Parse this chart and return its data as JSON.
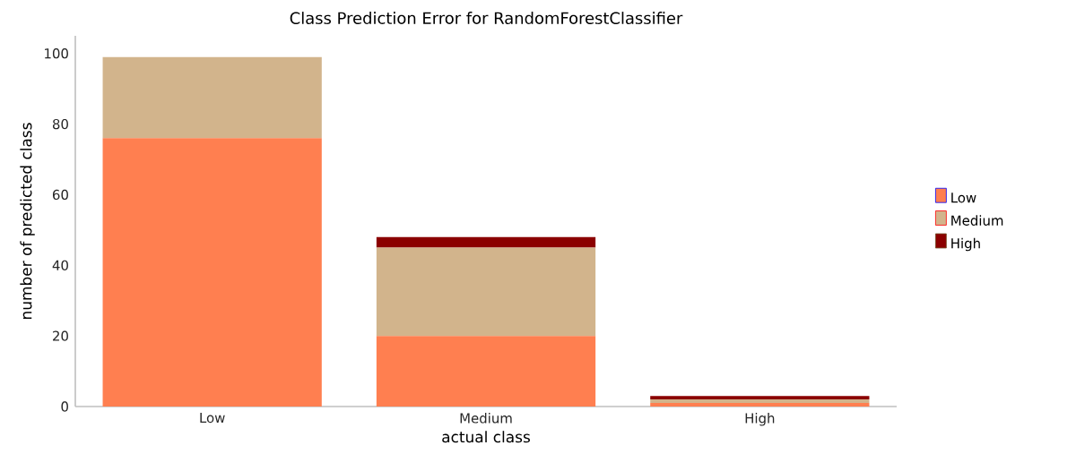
{
  "chart_data": {
    "type": "bar",
    "stacked": true,
    "title": "Class Prediction Error for RandomForestClassifier",
    "xlabel": "actual class",
    "ylabel": "number of predicted class",
    "categories": [
      "Low",
      "Medium",
      "High"
    ],
    "series": [
      {
        "name": "Low",
        "color": "#ff7f50",
        "values": [
          76,
          20,
          1
        ]
      },
      {
        "name": "Medium",
        "color": "#d2b48c",
        "values": [
          23,
          25,
          1
        ]
      },
      {
        "name": "High",
        "color": "#8b0000",
        "values": [
          0,
          3,
          1
        ]
      }
    ],
    "ylim": [
      0,
      105
    ],
    "yticks": [
      0,
      20,
      40,
      60,
      80,
      100
    ],
    "grid": false,
    "legend": "right"
  }
}
